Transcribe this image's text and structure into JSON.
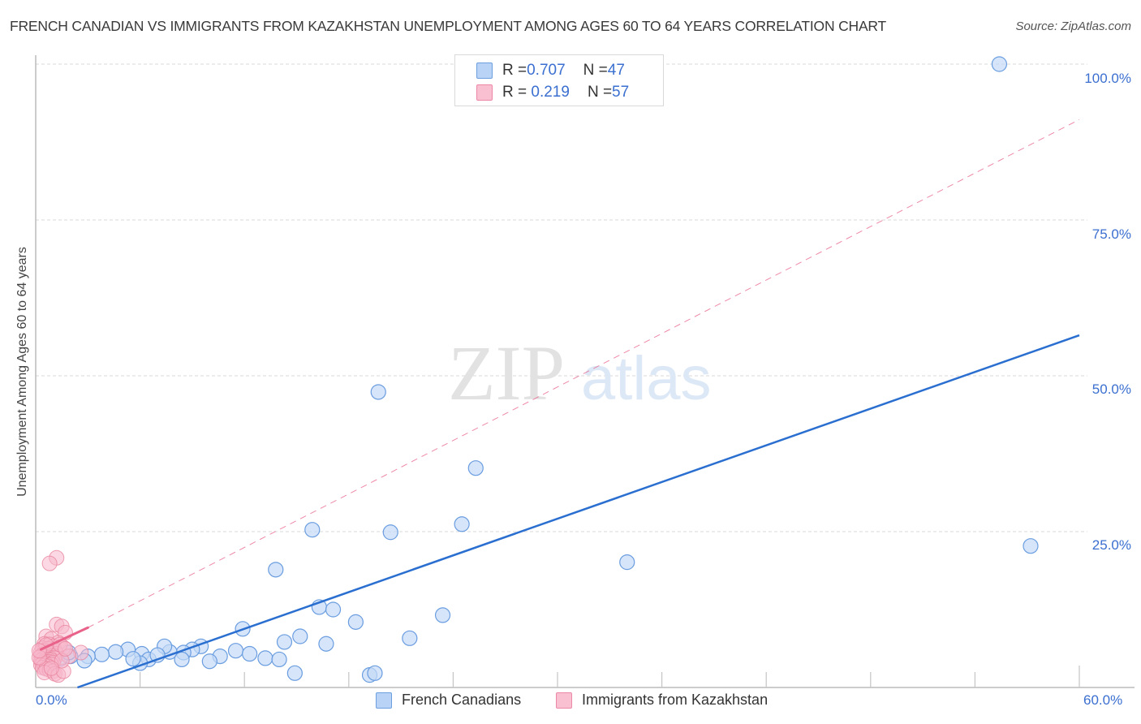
{
  "header": {
    "title": "FRENCH CANADIAN VS IMMIGRANTS FROM KAZAKHSTAN UNEMPLOYMENT AMONG AGES 60 TO 64 YEARS CORRELATION CHART",
    "source": "Source: ZipAtlas.com"
  },
  "watermark": {
    "zip": "ZIP",
    "atlas": "atlas"
  },
  "legend_top": {
    "rows": [
      {
        "r_label": "R = ",
        "r_value": "0.707",
        "n_label": "N = ",
        "n_value": "47",
        "color": "#b8d3f5",
        "border": "#6c9ee0"
      },
      {
        "r_label": "R = ",
        "r_value": " 0.219",
        "n_label": "N = ",
        "n_value": "57",
        "color": "#f9c0d2",
        "border": "#ec88a6"
      }
    ]
  },
  "legend_bottom": {
    "items": [
      {
        "label": "French Canadians",
        "color": "#b8d3f5",
        "border": "#6c9ee0"
      },
      {
        "label": "Immigrants from Kazakhstan",
        "color": "#f9c0d2",
        "border": "#ec88a6"
      }
    ]
  },
  "axes": {
    "x_min_label": "0.0%",
    "x_max_label": "60.0%",
    "y_tick_labels": [
      "100.0%",
      "75.0%",
      "50.0%",
      "25.0%"
    ],
    "y_label": "Unemployment Among Ages 60 to 64 years"
  },
  "colors": {
    "blue_fill": "#c5daf6",
    "blue_stroke": "#6a9de0",
    "blue_line": "#2a6fd0",
    "pink_fill": "#f7b8cc",
    "pink_stroke": "#e9869f",
    "pink_line": "#e8628a",
    "axis_label": "#3b6fd0",
    "grid": "#d8d8d8"
  },
  "chart_data": {
    "type": "scatter",
    "title": "FRENCH CANADIAN VS IMMIGRANTS FROM KAZAKHSTAN UNEMPLOYMENT AMONG AGES 60 TO 64 YEARS CORRELATION CHART",
    "xlabel": "",
    "ylabel": "Unemployment Among Ages 60 to 64 years",
    "xlim": [
      0,
      60
    ],
    "ylim": [
      0,
      100
    ],
    "x_ticks": [
      0,
      6,
      12,
      18,
      24,
      30,
      36,
      42,
      48,
      54,
      60
    ],
    "y_ticks": [
      25,
      50,
      75,
      100
    ],
    "grid": true,
    "legend_position": "top-center and bottom",
    "series": [
      {
        "name": "French Canadians",
        "R": 0.707,
        "N": 47,
        "color": "#6a9de0",
        "points": [
          [
            55.4,
            100.0
          ],
          [
            57.2,
            22.7
          ],
          [
            19.7,
            47.4
          ],
          [
            25.3,
            35.2
          ],
          [
            24.5,
            26.2
          ],
          [
            20.4,
            24.9
          ],
          [
            15.9,
            25.3
          ],
          [
            34.0,
            20.1
          ],
          [
            13.8,
            18.9
          ],
          [
            16.3,
            12.9
          ],
          [
            17.1,
            12.5
          ],
          [
            23.4,
            11.6
          ],
          [
            18.4,
            10.5
          ],
          [
            11.9,
            9.4
          ],
          [
            15.2,
            8.2
          ],
          [
            21.5,
            7.9
          ],
          [
            16.7,
            7.0
          ],
          [
            14.3,
            7.3
          ],
          [
            9.5,
            6.6
          ],
          [
            9.0,
            6.1
          ],
          [
            11.5,
            5.9
          ],
          [
            12.3,
            5.4
          ],
          [
            13.2,
            4.7
          ],
          [
            14.0,
            4.5
          ],
          [
            10.6,
            5.0
          ],
          [
            10.0,
            4.2
          ],
          [
            8.5,
            5.6
          ],
          [
            7.7,
            5.7
          ],
          [
            7.4,
            6.6
          ],
          [
            6.1,
            5.4
          ],
          [
            5.3,
            6.1
          ],
          [
            4.6,
            5.7
          ],
          [
            3.8,
            5.3
          ],
          [
            3.0,
            5.0
          ],
          [
            2.8,
            4.3
          ],
          [
            2.0,
            5.0
          ],
          [
            1.4,
            4.6
          ],
          [
            6.5,
            4.5
          ],
          [
            6.0,
            3.9
          ],
          [
            8.4,
            4.5
          ],
          [
            5.6,
            4.6
          ],
          [
            14.9,
            2.3
          ],
          [
            19.2,
            2.0
          ],
          [
            19.5,
            2.3
          ],
          [
            1.0,
            5.3
          ],
          [
            1.9,
            5.6
          ],
          [
            7.0,
            5.2
          ]
        ],
        "trend": {
          "x": [
            2.4,
            60
          ],
          "y": [
            0,
            56.5
          ],
          "style": "solid"
        }
      },
      {
        "name": "Immigrants from Kazakhstan",
        "R": 0.219,
        "N": 57,
        "color": "#e9869f",
        "points": [
          [
            1.2,
            20.8
          ],
          [
            0.8,
            19.9
          ],
          [
            1.2,
            10.1
          ],
          [
            1.5,
            9.8
          ],
          [
            1.7,
            8.8
          ],
          [
            0.6,
            8.2
          ],
          [
            0.9,
            7.8
          ],
          [
            1.3,
            7.2
          ],
          [
            0.5,
            7.0
          ],
          [
            0.8,
            6.9
          ],
          [
            1.0,
            6.6
          ],
          [
            1.6,
            6.4
          ],
          [
            0.4,
            6.3
          ],
          [
            0.7,
            6.2
          ],
          [
            1.1,
            6.0
          ],
          [
            0.5,
            5.9
          ],
          [
            0.3,
            5.7
          ],
          [
            0.6,
            5.6
          ],
          [
            0.9,
            5.5
          ],
          [
            1.2,
            5.4
          ],
          [
            0.4,
            5.3
          ],
          [
            0.7,
            5.2
          ],
          [
            1.0,
            5.1
          ],
          [
            0.3,
            5.0
          ],
          [
            0.6,
            4.9
          ],
          [
            0.8,
            4.8
          ],
          [
            1.1,
            4.7
          ],
          [
            0.4,
            4.6
          ],
          [
            0.7,
            4.5
          ],
          [
            0.9,
            4.4
          ],
          [
            0.3,
            4.3
          ],
          [
            0.5,
            4.2
          ],
          [
            0.8,
            4.1
          ],
          [
            1.0,
            4.0
          ],
          [
            0.4,
            3.9
          ],
          [
            0.6,
            3.8
          ],
          [
            0.9,
            3.7
          ],
          [
            0.3,
            3.6
          ],
          [
            0.5,
            3.5
          ],
          [
            0.7,
            3.4
          ],
          [
            0.4,
            3.2
          ],
          [
            0.6,
            3.0
          ],
          [
            0.8,
            2.8
          ],
          [
            1.0,
            2.6
          ],
          [
            0.5,
            2.4
          ],
          [
            1.1,
            2.2
          ],
          [
            1.3,
            2.0
          ],
          [
            1.6,
            2.6
          ],
          [
            0.6,
            6.8
          ],
          [
            1.4,
            6.9
          ],
          [
            2.6,
            5.6
          ],
          [
            1.9,
            5.0
          ],
          [
            1.5,
            4.3
          ],
          [
            0.2,
            4.8
          ],
          [
            0.2,
            5.9
          ],
          [
            1.7,
            6.2
          ],
          [
            0.9,
            3.1
          ]
        ],
        "trend": {
          "x": [
            0.3,
            3.0
          ],
          "y": [
            6.1,
            9.6
          ],
          "style": "solid"
        },
        "trend_extended": {
          "x": [
            3.0,
            60
          ],
          "y": [
            9.6,
            91.1
          ],
          "style": "dashed"
        }
      }
    ]
  }
}
